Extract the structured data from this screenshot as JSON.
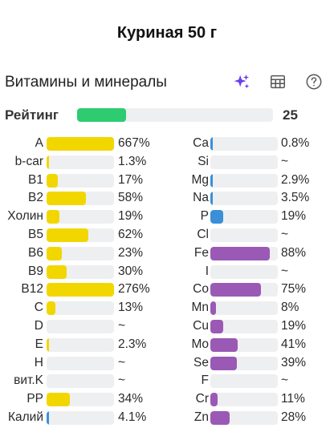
{
  "title": "Куриная 50 г",
  "section": {
    "heading": "Витамины и минералы",
    "icons": [
      "sparkle-icon",
      "table-icon",
      "help-icon"
    ]
  },
  "rating": {
    "label": "Рейтинг",
    "value": "25",
    "fill": 0.25,
    "color": "#2ecc71"
  },
  "colors": {
    "vitamin": "#f2d600",
    "mineral": "#9b59b6",
    "blue": "#3b8fd9",
    "track": "#eeeff0"
  },
  "vitamins": [
    {
      "name": "A",
      "value": "667%",
      "fill": 1.0,
      "color": "#f2d600"
    },
    {
      "name": "b-car",
      "value": "1.3%",
      "fill": 0.013,
      "color": "#f2d600"
    },
    {
      "name": "B1",
      "value": "17%",
      "fill": 0.17,
      "color": "#f2d600"
    },
    {
      "name": "B2",
      "value": "58%",
      "fill": 0.58,
      "color": "#f2d600"
    },
    {
      "name": "Холин",
      "value": "19%",
      "fill": 0.19,
      "color": "#f2d600"
    },
    {
      "name": "B5",
      "value": "62%",
      "fill": 0.62,
      "color": "#f2d600"
    },
    {
      "name": "B6",
      "value": "23%",
      "fill": 0.23,
      "color": "#f2d600"
    },
    {
      "name": "B9",
      "value": "30%",
      "fill": 0.3,
      "color": "#f2d600"
    },
    {
      "name": "B12",
      "value": "276%",
      "fill": 1.0,
      "color": "#f2d600"
    },
    {
      "name": "C",
      "value": "13%",
      "fill": 0.13,
      "color": "#f2d600"
    },
    {
      "name": "D",
      "value": "~",
      "fill": 0,
      "color": "#f2d600"
    },
    {
      "name": "E",
      "value": "2.3%",
      "fill": 0.023,
      "color": "#f2d600"
    },
    {
      "name": "H",
      "value": "~",
      "fill": 0,
      "color": "#f2d600"
    },
    {
      "name": "вит.K",
      "value": "~",
      "fill": 0,
      "color": "#f2d600"
    },
    {
      "name": "PP",
      "value": "34%",
      "fill": 0.34,
      "color": "#f2d600"
    },
    {
      "name": "Калий",
      "value": "4.1%",
      "fill": 0.041,
      "color": "#3b8fd9"
    }
  ],
  "minerals": [
    {
      "name": "Ca",
      "value": "0.8%",
      "fill": 0.008,
      "color": "#3b8fd9"
    },
    {
      "name": "Si",
      "value": "~",
      "fill": 0,
      "color": "#3b8fd9"
    },
    {
      "name": "Mg",
      "value": "2.9%",
      "fill": 0.029,
      "color": "#3b8fd9"
    },
    {
      "name": "Na",
      "value": "3.5%",
      "fill": 0.035,
      "color": "#3b8fd9"
    },
    {
      "name": "P",
      "value": "19%",
      "fill": 0.19,
      "color": "#3b8fd9"
    },
    {
      "name": "Cl",
      "value": "~",
      "fill": 0,
      "color": "#3b8fd9"
    },
    {
      "name": "Fe",
      "value": "88%",
      "fill": 0.88,
      "color": "#9b59b6"
    },
    {
      "name": "I",
      "value": "~",
      "fill": 0,
      "color": "#9b59b6"
    },
    {
      "name": "Co",
      "value": "75%",
      "fill": 0.75,
      "color": "#9b59b6"
    },
    {
      "name": "Mn",
      "value": "8%",
      "fill": 0.08,
      "color": "#9b59b6"
    },
    {
      "name": "Cu",
      "value": "19%",
      "fill": 0.19,
      "color": "#9b59b6"
    },
    {
      "name": "Mo",
      "value": "41%",
      "fill": 0.41,
      "color": "#9b59b6"
    },
    {
      "name": "Se",
      "value": "39%",
      "fill": 0.39,
      "color": "#9b59b6"
    },
    {
      "name": "F",
      "value": "~",
      "fill": 0,
      "color": "#9b59b6"
    },
    {
      "name": "Cr",
      "value": "11%",
      "fill": 0.11,
      "color": "#9b59b6"
    },
    {
      "name": "Zn",
      "value": "28%",
      "fill": 0.28,
      "color": "#9b59b6"
    }
  ]
}
